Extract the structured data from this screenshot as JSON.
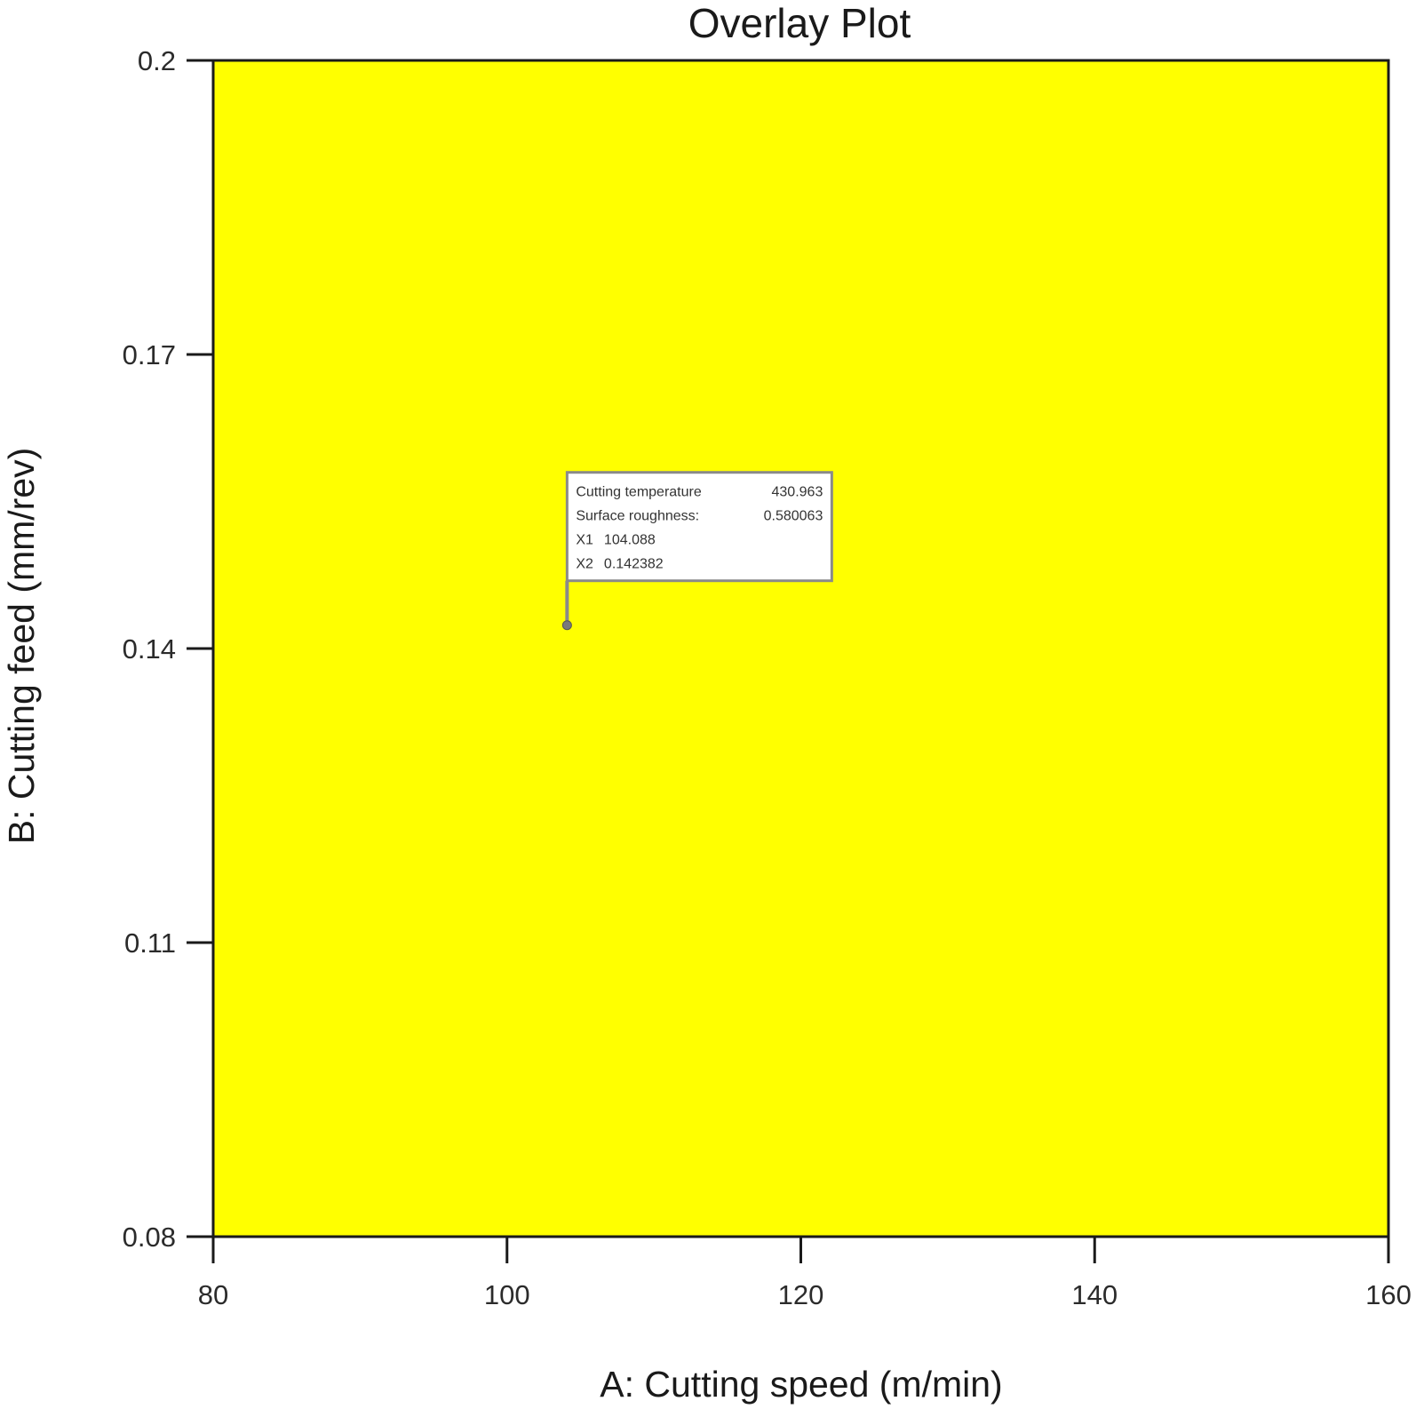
{
  "chart_data": {
    "type": "heatmap",
    "title": "Overlay Plot",
    "xlabel": "A: Cutting speed (m/min)",
    "ylabel": "B: Cutting feed (mm/rev)",
    "xlim": [
      80,
      160
    ],
    "ylim": [
      0.08,
      0.2
    ],
    "x_ticks": [
      "80",
      "100",
      "120",
      "140",
      "160"
    ],
    "y_ticks": [
      "0.08",
      "0.11",
      "0.14",
      "0.17",
      "0.2"
    ],
    "x_tick_values": [
      80,
      100,
      120,
      140,
      160
    ],
    "y_tick_values": [
      0.08,
      0.11,
      0.14,
      0.17,
      0.2
    ],
    "region": {
      "description": "feasible region",
      "x_range": [
        80,
        160
      ],
      "y_range": [
        0.08,
        0.2
      ],
      "color": "#ffff00"
    },
    "flag": {
      "x": 104.088,
      "y": 0.142382,
      "lines": [
        {
          "label": "Cutting temperature",
          "value": "430.963"
        },
        {
          "label": "Surface roughness:",
          "value": "0.580063"
        },
        {
          "label": "X1",
          "value": "104.088"
        },
        {
          "label": "X2",
          "value": "0.142382"
        }
      ]
    },
    "grid": false,
    "legend": "none"
  },
  "colors": {
    "region": "#ffff00",
    "axis": "#1a1a1a",
    "flag_border": "#8a8a8a",
    "flag_fill": "#ffffff"
  }
}
